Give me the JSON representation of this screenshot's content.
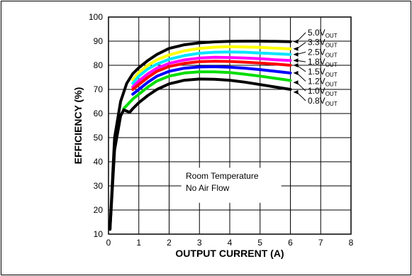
{
  "chart_data": {
    "type": "line",
    "title": "",
    "xlabel": "OUTPUT CURRENT (A)",
    "ylabel": "EFFICIENCY (%)",
    "xlim": [
      0,
      8
    ],
    "ylim": [
      10,
      100
    ],
    "xticks": [
      0,
      1,
      2,
      3,
      4,
      5,
      6,
      7,
      8
    ],
    "yticks": [
      10,
      20,
      30,
      40,
      50,
      60,
      70,
      80,
      90,
      100
    ],
    "grid": true,
    "annotations": [
      "Room Temperature",
      "No Air Flow"
    ],
    "series": [
      {
        "name": "5.0V",
        "name_sub": "OUT",
        "color": "#000000",
        "x": [
          0.05,
          0.2,
          0.4,
          0.6,
          0.8,
          1.0,
          1.3,
          1.6,
          2.0,
          2.5,
          3.0,
          3.5,
          4.0,
          4.5,
          5.0,
          5.5,
          6.0
        ],
        "y": [
          12,
          50,
          65,
          72.5,
          76.5,
          79,
          82,
          84.5,
          87,
          88.5,
          89.3,
          89.7,
          89.9,
          90,
          90,
          89.9,
          89.8
        ]
      },
      {
        "name": "3.3V",
        "name_sub": "OUT",
        "color": "#ffff00",
        "x": [
          0.8,
          1.0,
          1.3,
          1.6,
          2.0,
          2.5,
          3.0,
          3.5,
          4.0,
          4.5,
          5.0,
          5.5,
          6.0
        ],
        "y": [
          74,
          77,
          80,
          82.3,
          84.3,
          86,
          87,
          87.5,
          87.7,
          87.6,
          87.4,
          87.1,
          86.8
        ]
      },
      {
        "name": "2.5V",
        "name_sub": "OUT",
        "color": "#00e5ff",
        "x": [
          0.8,
          1.0,
          1.3,
          1.6,
          2.0,
          2.5,
          3.0,
          3.5,
          4.0,
          4.5,
          5.0,
          5.5,
          6.0
        ],
        "y": [
          72.5,
          75.5,
          78.5,
          80.5,
          82.5,
          84,
          85,
          85.4,
          85.5,
          85.4,
          85.1,
          84.8,
          84.5
        ]
      },
      {
        "name": "1.8V",
        "name_sub": "OUT",
        "color": "#ff00ff",
        "x": [
          0.8,
          1.0,
          1.3,
          1.6,
          2.0,
          2.5,
          3.0,
          3.5,
          4.0,
          4.5,
          5.0,
          5.5,
          6.0
        ],
        "y": [
          71,
          73.5,
          76.5,
          78.8,
          80.8,
          82.2,
          83,
          83.3,
          83.2,
          83,
          82.7,
          82.3,
          82
        ]
      },
      {
        "name": "1.5V",
        "name_sub": "OUT",
        "color": "#ff0000",
        "x": [
          0.8,
          1.0,
          1.3,
          1.6,
          2.0,
          2.5,
          3.0,
          3.5,
          4.0,
          4.5,
          5.0,
          5.5,
          6.0
        ],
        "y": [
          70,
          72,
          75,
          77.5,
          79.5,
          80.8,
          81.5,
          81.7,
          81.6,
          81.3,
          80.9,
          80.5,
          80
        ]
      },
      {
        "name": "1.2V",
        "name_sub": "OUT",
        "color": "#0000ff",
        "x": [
          0.8,
          1.0,
          1.3,
          1.6,
          2.0,
          2.5,
          3.0,
          3.5,
          4.0,
          4.5,
          5.0,
          5.5,
          6.0
        ],
        "y": [
          68,
          70,
          73,
          75.5,
          77.5,
          78.8,
          79.3,
          79.4,
          79.2,
          78.8,
          78.2,
          77.5,
          76.8
        ]
      },
      {
        "name": "1.0V",
        "name_sub": "OUT",
        "color": "#00dd00",
        "x": [
          0.5,
          0.8,
          1.0,
          1.3,
          1.6,
          2.0,
          2.5,
          3.0,
          3.5,
          4.0,
          4.5,
          5.0,
          5.5,
          6.0
        ],
        "y": [
          62,
          66,
          68,
          71,
          73.5,
          75.5,
          76.8,
          77.3,
          77.3,
          77,
          76.3,
          75.5,
          74.6,
          73.7
        ]
      },
      {
        "name": "0.8V",
        "name_sub": "OUT",
        "color": "#000000",
        "x": [
          0.05,
          0.2,
          0.4,
          0.5,
          0.6,
          0.7,
          0.8,
          1.0,
          1.3,
          1.6,
          2.0,
          2.5,
          3.0,
          3.5,
          4.0,
          4.5,
          5.0,
          5.5,
          6.0
        ],
        "y": [
          12,
          45,
          59,
          61.5,
          61,
          60.5,
          62,
          64.5,
          67.5,
          70,
          72.3,
          73.8,
          74.3,
          74.2,
          73.8,
          73,
          72,
          71,
          70
        ]
      }
    ]
  }
}
